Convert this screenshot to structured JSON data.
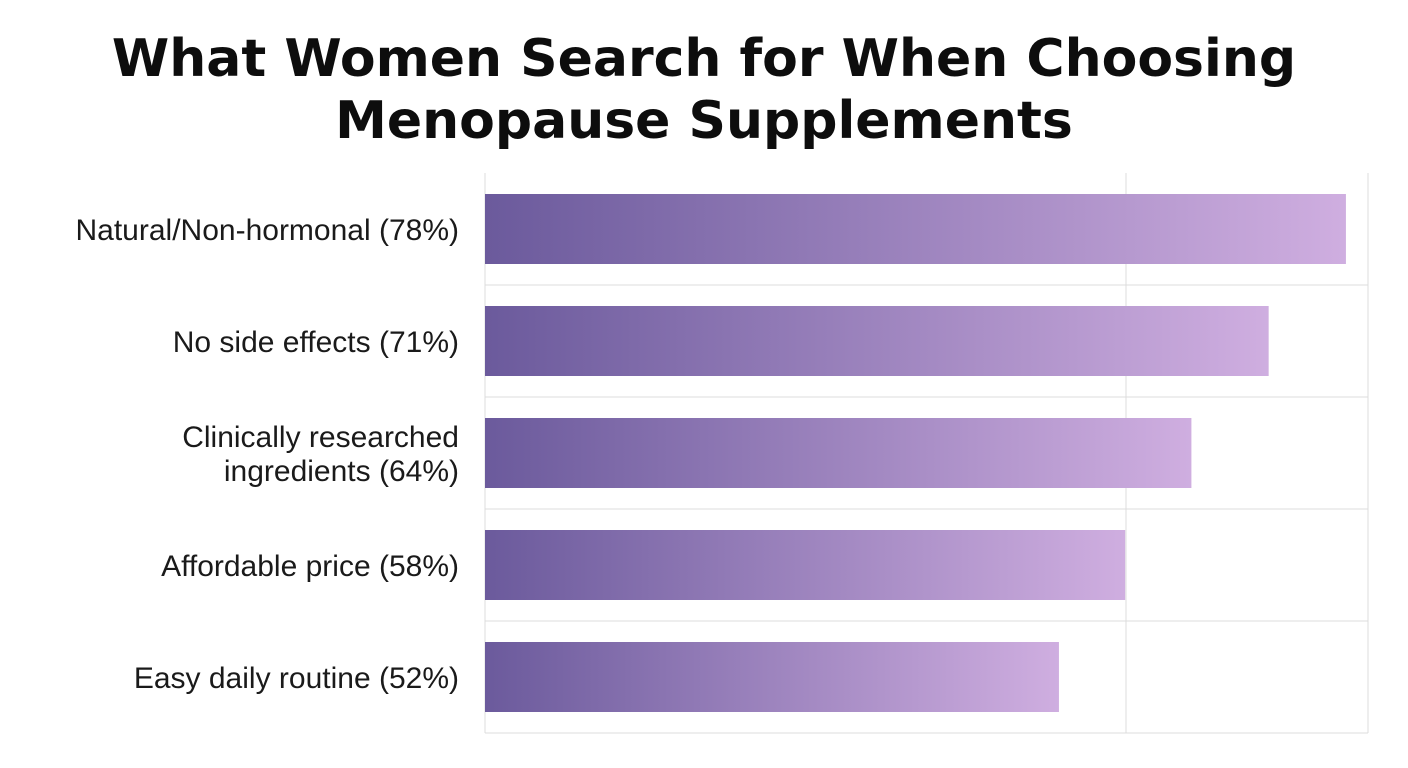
{
  "chart_data": {
    "type": "bar",
    "orientation": "horizontal",
    "title_lines": [
      "What Women Search for When Choosing",
      "Menopause Supplements"
    ],
    "categories": [
      [
        "Natural/Non-hormonal (78%)"
      ],
      [
        "No side effects (71%)"
      ],
      [
        "Clinically researched",
        "ingredients (64%)"
      ],
      [
        "Affordable price (58%)"
      ],
      [
        "Easy daily routine (52%)"
      ]
    ],
    "values": [
      78,
      71,
      64,
      58,
      52
    ],
    "xlim": [
      0,
      80
    ],
    "grid": true,
    "bar_gradient": [
      "#6b5a9c",
      "#cfaee0"
    ]
  }
}
